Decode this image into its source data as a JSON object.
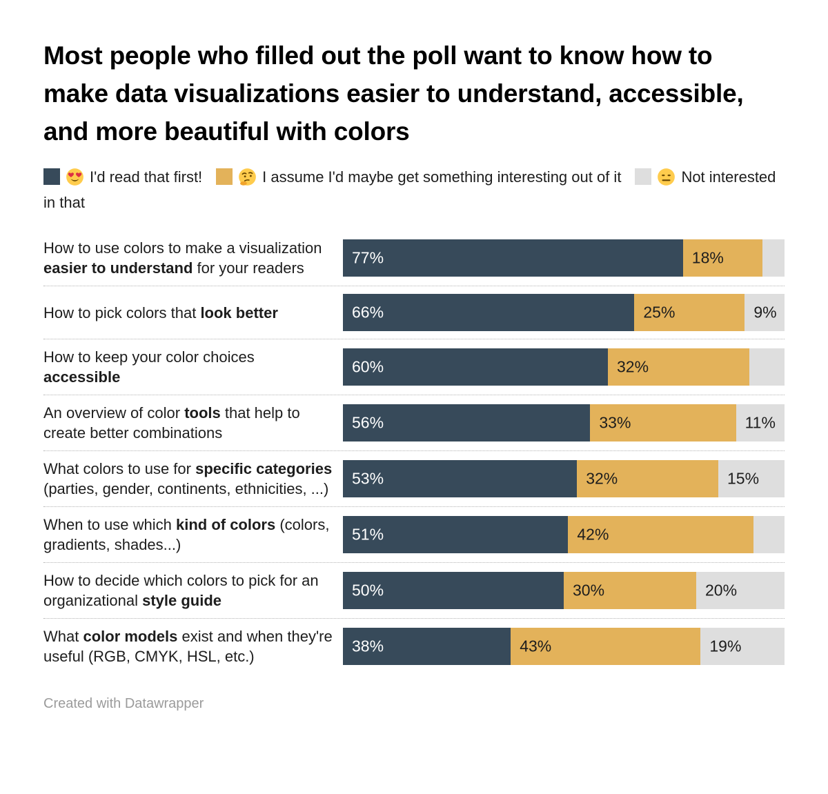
{
  "title": "Most people who filled out the poll want to know how to make data visualizations easier to understand, accessible, and more beautiful with colors",
  "legend": {
    "items": [
      {
        "label": "I'd read that first!",
        "emoji": "heart-eyes",
        "color": "#374a5a"
      },
      {
        "label": "I assume I'd maybe get something interesting out of it",
        "emoji": "thinking-face",
        "color": "#e3b25a"
      },
      {
        "label": "Not interested in that",
        "emoji": "neutral-face",
        "color": "#dedede"
      }
    ]
  },
  "footer": {
    "credit": "Created with Datawrapper"
  },
  "chart_data": {
    "type": "bar",
    "orientation": "horizontal",
    "stacked": true,
    "grid": false,
    "legend_position": "top",
    "xlim": [
      0,
      100
    ],
    "value_unit": "%",
    "series_names": [
      "I'd read that first!",
      "I assume I'd maybe get something interesting out of it",
      "Not interested in that"
    ],
    "series_colors": [
      "#374a5a",
      "#e3b25a",
      "#dedede"
    ],
    "label_text_colors": [
      "#ffffff",
      "#1d1d1d",
      "#1d1d1d"
    ],
    "categories": [
      "How to use colors to make a visualization easier to understand for your readers",
      "How to pick colors that look better",
      "How to keep your color choices accessible",
      "An overview of color tools that help to create better combinations",
      "What colors to use for specific categories (parties, gender, continents, ethnicities, ...)",
      "When to use which kind of colors (colors, gradients, shades...)",
      "How to decide which colors to pick for an organizational style guide",
      "What color models exist and when they're useful (RGB, CMYK, HSL, etc.)"
    ],
    "rows": [
      {
        "label_parts": [
          {
            "text": "How to use colors to make a visualization "
          },
          {
            "text": "easier to understand",
            "bold": true
          },
          {
            "text": " for your readers"
          }
        ],
        "values": [
          77,
          18,
          5
        ],
        "value_labels": [
          "77%",
          "18%",
          null
        ]
      },
      {
        "label_parts": [
          {
            "text": "How to pick colors that "
          },
          {
            "text": "look better",
            "bold": true
          }
        ],
        "values": [
          66,
          25,
          9
        ],
        "value_labels": [
          "66%",
          "25%",
          "9%"
        ]
      },
      {
        "label_parts": [
          {
            "text": "How to keep your color choices "
          },
          {
            "text": "accessible",
            "bold": true
          }
        ],
        "values": [
          60,
          32,
          8
        ],
        "value_labels": [
          "60%",
          "32%",
          null
        ]
      },
      {
        "label_parts": [
          {
            "text": "An overview of color "
          },
          {
            "text": "tools",
            "bold": true
          },
          {
            "text": " that help to create better combinations"
          }
        ],
        "values": [
          56,
          33,
          11
        ],
        "value_labels": [
          "56%",
          "33%",
          "11%"
        ]
      },
      {
        "label_parts": [
          {
            "text": "What colors to use for "
          },
          {
            "text": "specific categories",
            "bold": true
          },
          {
            "text": " (parties, gender, continents, ethnicities, ...)"
          }
        ],
        "values": [
          53,
          32,
          15
        ],
        "value_labels": [
          "53%",
          "32%",
          "15%"
        ]
      },
      {
        "label_parts": [
          {
            "text": "When to use which "
          },
          {
            "text": "kind of colors",
            "bold": true
          },
          {
            "text": " (colors, gradients, shades...)"
          }
        ],
        "values": [
          51,
          42,
          7
        ],
        "value_labels": [
          "51%",
          "42%",
          null
        ]
      },
      {
        "label_parts": [
          {
            "text": "How to decide which colors to pick for an organizational "
          },
          {
            "text": "style guide",
            "bold": true
          }
        ],
        "values": [
          50,
          30,
          20
        ],
        "value_labels": [
          "50%",
          "30%",
          "20%"
        ]
      },
      {
        "label_parts": [
          {
            "text": "What "
          },
          {
            "text": "color models",
            "bold": true
          },
          {
            "text": " exist and when they're useful (RGB, CMYK, HSL, etc.)"
          }
        ],
        "values": [
          38,
          43,
          19
        ],
        "value_labels": [
          "38%",
          "43%",
          "19%"
        ]
      }
    ]
  }
}
